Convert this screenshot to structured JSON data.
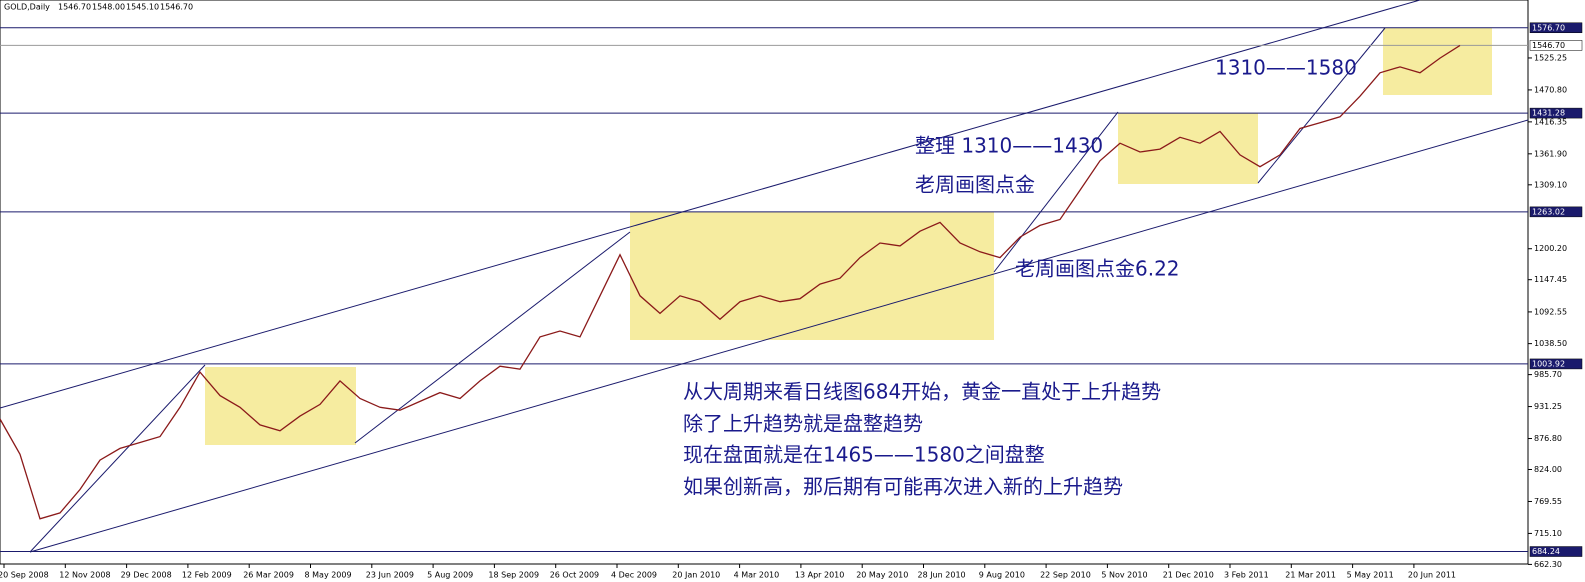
{
  "chart_data": {
    "type": "line",
    "title": "GOLD,Daily",
    "header_prices": [
      {
        "value": 1546.7,
        "label": "1546.70"
      },
      {
        "value": 1548,
        "label": "1548.00"
      },
      {
        "value": 1545.1,
        "label": "1545.10"
      },
      {
        "value": 1546.7,
        "label": "1546.70"
      }
    ],
    "series": [
      {
        "name": "GOLD",
        "color": "#8b1a1a",
        "values": [
          910,
          850,
          740,
          750,
          790,
          840,
          860,
          870,
          880,
          930,
          990,
          950,
          930,
          900,
          890,
          915,
          935,
          975,
          945,
          930,
          925,
          940,
          955,
          945,
          975,
          1000,
          995,
          1050,
          1060,
          1050,
          1120,
          1190,
          1120,
          1090,
          1120,
          1110,
          1080,
          1110,
          1120,
          1110,
          1115,
          1140,
          1150,
          1185,
          1210,
          1205,
          1230,
          1245,
          1210,
          1195,
          1185,
          1220,
          1240,
          1250,
          1300,
          1350,
          1380,
          1365,
          1370,
          1390,
          1380,
          1400,
          1360,
          1340,
          1360,
          1405,
          1415,
          1425,
          1460,
          1500,
          1510,
          1500,
          1525,
          1546.7
        ]
      }
    ],
    "ylim": [
      663,
      1624
    ],
    "yticks": [
      1525.25,
      {
        "value": 1470.8,
        "label": "1470.80"
      },
      1416.35,
      {
        "value": 1361.9,
        "label": "1361.90"
      },
      {
        "value": 1309.1,
        "label": "1309.10"
      },
      {
        "value": 1200.2,
        "label": "1200.20"
      },
      1147.45,
      1092.55,
      {
        "value": 1038.5,
        "label": "1038.50"
      },
      {
        "value": 985.7,
        "label": "985.70"
      },
      931.25,
      {
        "value": 876.8,
        "label": "876.80"
      },
      {
        "value": 824,
        "label": "824.00"
      },
      769.55,
      {
        "value": 715.1,
        "label": "715.10"
      },
      {
        "value": 662.3,
        "label": "662.30"
      }
    ],
    "levels": [
      {
        "value": 1576.7,
        "label": "1576.70"
      },
      {
        "value": 1546.7,
        "label": "1546.70"
      },
      1431.28,
      1263.02,
      1003.92,
      684.24
    ],
    "xticks": [
      "20 Sep 2008",
      "12 Nov 2008",
      "29 Dec 2008",
      "12 Feb 2009",
      "26 Mar 2009",
      "8 May 2009",
      "23 Jun 2009",
      "5 Aug 2009",
      "18 Sep 2009",
      "26 Oct 2009",
      "4 Dec 2009",
      "20 Jan 2010",
      "4 Mar 2010",
      "13 Apr 2010",
      "20 May 2010",
      "28 Jun 2010",
      "9 Aug 2010",
      "22 Sep 2010",
      "5 Nov 2010",
      "21 Dec 2010",
      "3 Feb 2011",
      "21 Mar 2011",
      "5 May 2011",
      "20 Jun 2011"
    ],
    "annotations": [
      "1310——1580",
      "整理 1310——1430",
      "老周画图点金",
      "老周画图点金6.22",
      "从大周期来看日线图684开始，黄金一直处于上升趋势",
      "除了上升趋势就是盘整趋势",
      "现在盘面就是在1465——1580之间盘整",
      "如果创新高，那后期有可能再次进入新的上升趋势"
    ]
  }
}
